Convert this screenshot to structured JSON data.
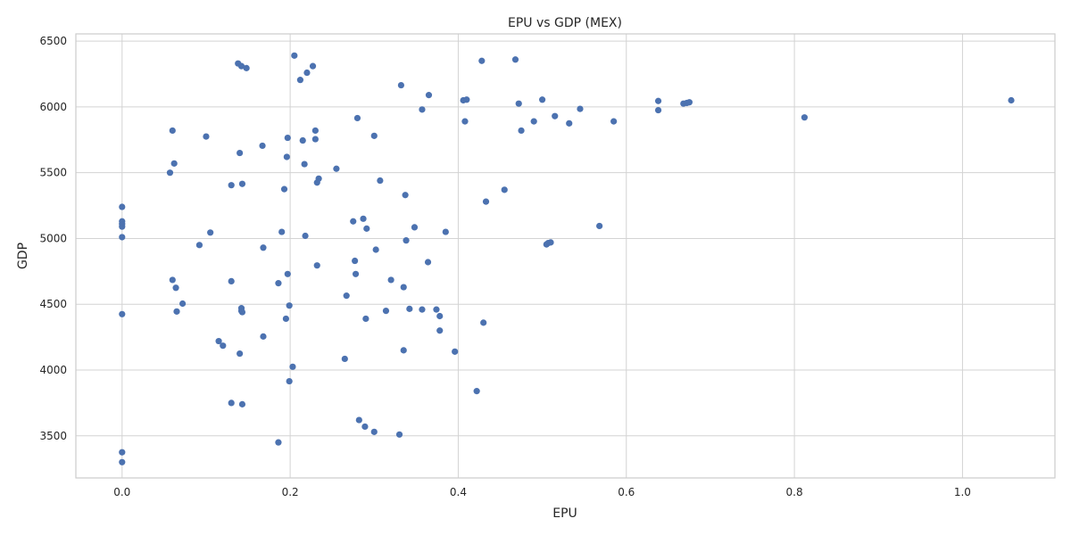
{
  "chart_data": {
    "type": "scatter",
    "title": "EPU vs GDP (MEX)",
    "xlabel": "EPU",
    "ylabel": "GDP",
    "xlim": [
      -0.055,
      1.11
    ],
    "ylim": [
      3180,
      6555
    ],
    "x_ticks": [
      0.0,
      0.2,
      0.4,
      0.6,
      0.8,
      1.0
    ],
    "x_tick_labels": [
      "0.0",
      "0.2",
      "0.4",
      "0.6",
      "0.8",
      "1.0"
    ],
    "y_ticks": [
      3500,
      4000,
      4500,
      5000,
      5500,
      6000,
      6500
    ],
    "y_tick_labels": [
      "3500",
      "4000",
      "4500",
      "5000",
      "5500",
      "6000",
      "6500"
    ],
    "grid": true,
    "marker_color": "#4c72b0",
    "series": [
      {
        "points": [
          [
            0.0,
            5240
          ],
          [
            0.0,
            5130
          ],
          [
            0.0,
            5110
          ],
          [
            0.0,
            5090
          ],
          [
            0.0,
            5010
          ],
          [
            0.0,
            4425
          ],
          [
            0.0,
            3375
          ],
          [
            0.0,
            3300
          ],
          [
            0.057,
            5500
          ],
          [
            0.06,
            5820
          ],
          [
            0.062,
            5570
          ],
          [
            0.06,
            4685
          ],
          [
            0.064,
            4625
          ],
          [
            0.065,
            4445
          ],
          [
            0.072,
            4505
          ],
          [
            0.092,
            4950
          ],
          [
            0.1,
            5775
          ],
          [
            0.105,
            5045
          ],
          [
            0.115,
            4220
          ],
          [
            0.12,
            4185
          ],
          [
            0.13,
            5405
          ],
          [
            0.13,
            4675
          ],
          [
            0.13,
            3750
          ],
          [
            0.138,
            6330
          ],
          [
            0.142,
            6310
          ],
          [
            0.148,
            6295
          ],
          [
            0.14,
            5650
          ],
          [
            0.143,
            5415
          ],
          [
            0.142,
            4470
          ],
          [
            0.142,
            4450
          ],
          [
            0.143,
            4440
          ],
          [
            0.14,
            4125
          ],
          [
            0.143,
            3740
          ],
          [
            0.167,
            5705
          ],
          [
            0.168,
            4930
          ],
          [
            0.168,
            4255
          ],
          [
            0.186,
            4660
          ],
          [
            0.19,
            5050
          ],
          [
            0.193,
            5375
          ],
          [
            0.195,
            4390
          ],
          [
            0.196,
            5620
          ],
          [
            0.197,
            5765
          ],
          [
            0.197,
            4730
          ],
          [
            0.199,
            4490
          ],
          [
            0.199,
            3915
          ],
          [
            0.203,
            4025
          ],
          [
            0.186,
            3450
          ],
          [
            0.205,
            6390
          ],
          [
            0.212,
            6205
          ],
          [
            0.22,
            6260
          ],
          [
            0.227,
            6310
          ],
          [
            0.215,
            5745
          ],
          [
            0.217,
            5565
          ],
          [
            0.218,
            5020
          ],
          [
            0.23,
            5820
          ],
          [
            0.23,
            5755
          ],
          [
            0.232,
            5425
          ],
          [
            0.234,
            5455
          ],
          [
            0.232,
            4795
          ],
          [
            0.255,
            5530
          ],
          [
            0.265,
            4085
          ],
          [
            0.267,
            4565
          ],
          [
            0.275,
            5130
          ],
          [
            0.277,
            4830
          ],
          [
            0.278,
            4730
          ],
          [
            0.28,
            5915
          ],
          [
            0.282,
            3620
          ],
          [
            0.287,
            5150
          ],
          [
            0.289,
            3570
          ],
          [
            0.29,
            4390
          ],
          [
            0.291,
            5075
          ],
          [
            0.3,
            5780
          ],
          [
            0.3,
            3530
          ],
          [
            0.302,
            4915
          ],
          [
            0.307,
            5440
          ],
          [
            0.32,
            4685
          ],
          [
            0.314,
            4450
          ],
          [
            0.33,
            3510
          ],
          [
            0.332,
            6165
          ],
          [
            0.335,
            4630
          ],
          [
            0.335,
            4150
          ],
          [
            0.337,
            5330
          ],
          [
            0.338,
            4985
          ],
          [
            0.342,
            4465
          ],
          [
            0.348,
            5085
          ],
          [
            0.357,
            5980
          ],
          [
            0.357,
            4460
          ],
          [
            0.365,
            6090
          ],
          [
            0.364,
            4820
          ],
          [
            0.374,
            4460
          ],
          [
            0.378,
            4410
          ],
          [
            0.378,
            4300
          ],
          [
            0.385,
            5050
          ],
          [
            0.396,
            4140
          ],
          [
            0.406,
            6050
          ],
          [
            0.41,
            6055
          ],
          [
            0.408,
            5890
          ],
          [
            0.422,
            3840
          ],
          [
            0.428,
            6350
          ],
          [
            0.43,
            4360
          ],
          [
            0.433,
            5280
          ],
          [
            0.455,
            5370
          ],
          [
            0.468,
            6360
          ],
          [
            0.472,
            6025
          ],
          [
            0.475,
            5820
          ],
          [
            0.49,
            5890
          ],
          [
            0.5,
            6055
          ],
          [
            0.505,
            4955
          ],
          [
            0.507,
            4965
          ],
          [
            0.51,
            4970
          ],
          [
            0.515,
            5930
          ],
          [
            0.532,
            5875
          ],
          [
            0.545,
            5985
          ],
          [
            0.568,
            5095
          ],
          [
            0.585,
            5890
          ],
          [
            0.638,
            6045
          ],
          [
            0.638,
            5975
          ],
          [
            0.668,
            6025
          ],
          [
            0.672,
            6030
          ],
          [
            0.675,
            6035
          ],
          [
            0.812,
            5920
          ],
          [
            1.058,
            6050
          ]
        ]
      }
    ]
  }
}
